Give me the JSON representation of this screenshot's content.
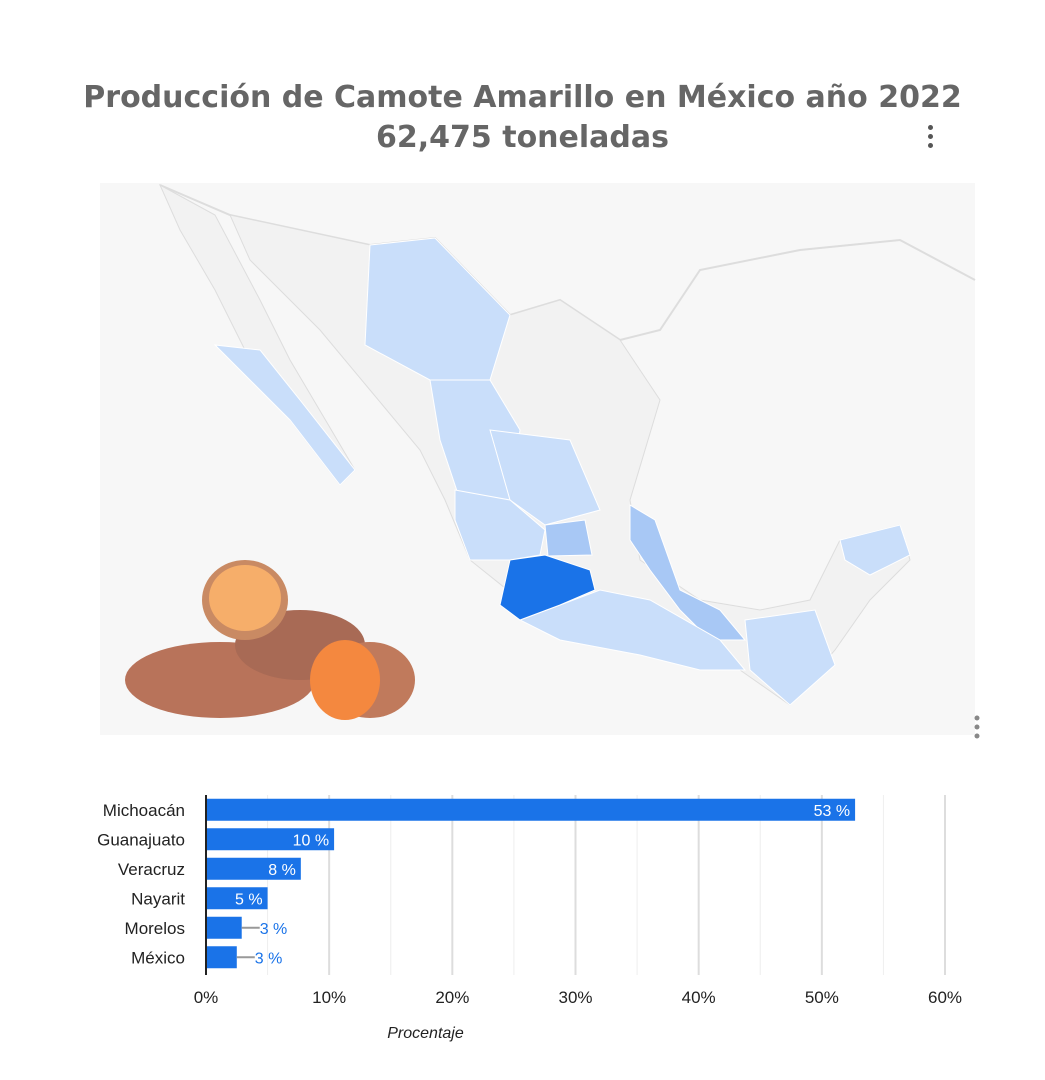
{
  "title": "Producción de Camote Amarillo en México año 2022",
  "subtitle": "62,475 toneladas",
  "icons": {
    "menu": "more-vert-icon",
    "map_menu": "more-vert-icon",
    "image": "sweet-potato-image"
  },
  "colors": {
    "bar": "#1a73e8",
    "map_high": "#1a73e8",
    "map_mid": "#a8c8f5",
    "map_low": "#c9defa",
    "map_none": "#f2f2f2"
  },
  "map": {
    "highlighted_state": "Michoacán"
  },
  "chart_data": {
    "type": "bar",
    "orientation": "horizontal",
    "categories": [
      "Michoacán",
      "Guanajuato",
      "Veracruz",
      "Nayarit",
      "Morelos",
      "México"
    ],
    "values": [
      52.7,
      10.4,
      7.7,
      5.0,
      2.9,
      2.5
    ],
    "data_labels": [
      "53 %",
      "10 %",
      "8 %",
      "5 %",
      "3 %",
      "3 %"
    ],
    "xlabel": "Procentaje",
    "ylabel": "",
    "xlim": [
      0,
      60
    ],
    "ticks": [
      "0%",
      "10%",
      "20%",
      "30%",
      "40%",
      "50%",
      "60%"
    ],
    "grid": true
  }
}
